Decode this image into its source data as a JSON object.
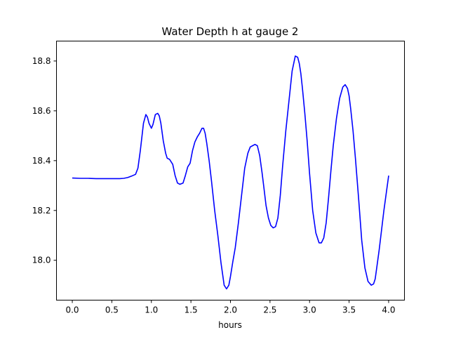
{
  "chart_data": {
    "type": "line",
    "title": "Water Depth h at gauge 2",
    "xlabel": "hours",
    "ylabel": "",
    "xlim": [
      -0.2,
      4.2
    ],
    "ylim": [
      17.84,
      18.88
    ],
    "xticks": [
      0.0,
      0.5,
      1.0,
      1.5,
      2.0,
      2.5,
      3.0,
      3.5,
      4.0
    ],
    "xtick_labels": [
      "0.0",
      "0.5",
      "1.0",
      "1.5",
      "2.0",
      "2.5",
      "3.0",
      "3.5",
      "4.0"
    ],
    "yticks": [
      18.0,
      18.2,
      18.4,
      18.6,
      18.8
    ],
    "ytick_labels": [
      "18.0",
      "18.2",
      "18.4",
      "18.6",
      "18.8"
    ],
    "grid": false,
    "line_color": "#0000ff",
    "series": [
      {
        "x": [
          0.0,
          0.1,
          0.2,
          0.3,
          0.4,
          0.5,
          0.6,
          0.65,
          0.7,
          0.75,
          0.8,
          0.83,
          0.86,
          0.9,
          0.93,
          0.95,
          0.97,
          1.0,
          1.02,
          1.05,
          1.08,
          1.1,
          1.12,
          1.15,
          1.18,
          1.2,
          1.23,
          1.27,
          1.3,
          1.33,
          1.36,
          1.4,
          1.43,
          1.46,
          1.49,
          1.52,
          1.55,
          1.58,
          1.61,
          1.64,
          1.66,
          1.68,
          1.7,
          1.73,
          1.76,
          1.8,
          1.84,
          1.88,
          1.92,
          1.95,
          1.98,
          2.0,
          2.03,
          2.06,
          2.1,
          2.14,
          2.18,
          2.22,
          2.25,
          2.28,
          2.31,
          2.34,
          2.37,
          2.4,
          2.42,
          2.45,
          2.48,
          2.51,
          2.54,
          2.57,
          2.6,
          2.63,
          2.66,
          2.7,
          2.74,
          2.78,
          2.82,
          2.85,
          2.87,
          2.89,
          2.91,
          2.94,
          2.97,
          3.0,
          3.04,
          3.08,
          3.12,
          3.15,
          3.18,
          3.21,
          3.24,
          3.27,
          3.3,
          3.34,
          3.38,
          3.42,
          3.45,
          3.48,
          3.5,
          3.52,
          3.55,
          3.58,
          3.62,
          3.66,
          3.7,
          3.74,
          3.78,
          3.81,
          3.83,
          3.85,
          3.88,
          3.91,
          3.94,
          3.97,
          4.0
        ],
        "y": [
          18.33,
          18.329,
          18.329,
          18.328,
          18.328,
          18.328,
          18.328,
          18.329,
          18.332,
          18.338,
          18.345,
          18.37,
          18.44,
          18.55,
          18.585,
          18.575,
          18.55,
          18.53,
          18.545,
          18.585,
          18.59,
          18.58,
          18.55,
          18.48,
          18.43,
          18.41,
          18.405,
          18.385,
          18.34,
          18.31,
          18.305,
          18.31,
          18.34,
          18.375,
          18.39,
          18.44,
          18.475,
          18.495,
          18.51,
          18.53,
          18.53,
          18.51,
          18.47,
          18.4,
          18.32,
          18.2,
          18.1,
          17.99,
          17.9,
          17.885,
          17.9,
          17.935,
          17.995,
          18.05,
          18.15,
          18.26,
          18.37,
          18.43,
          18.455,
          18.46,
          18.465,
          18.46,
          18.42,
          18.35,
          18.3,
          18.22,
          18.17,
          18.14,
          18.13,
          18.135,
          18.17,
          18.26,
          18.38,
          18.52,
          18.64,
          18.76,
          18.82,
          18.815,
          18.79,
          18.75,
          18.69,
          18.59,
          18.48,
          18.35,
          18.2,
          18.11,
          18.07,
          18.07,
          18.09,
          18.15,
          18.25,
          18.36,
          18.46,
          18.57,
          18.65,
          18.695,
          18.705,
          18.69,
          18.66,
          18.61,
          18.52,
          18.41,
          18.25,
          18.08,
          17.97,
          17.915,
          17.9,
          17.905,
          17.925,
          17.97,
          18.04,
          18.12,
          18.2,
          18.27,
          18.34
        ]
      }
    ]
  }
}
